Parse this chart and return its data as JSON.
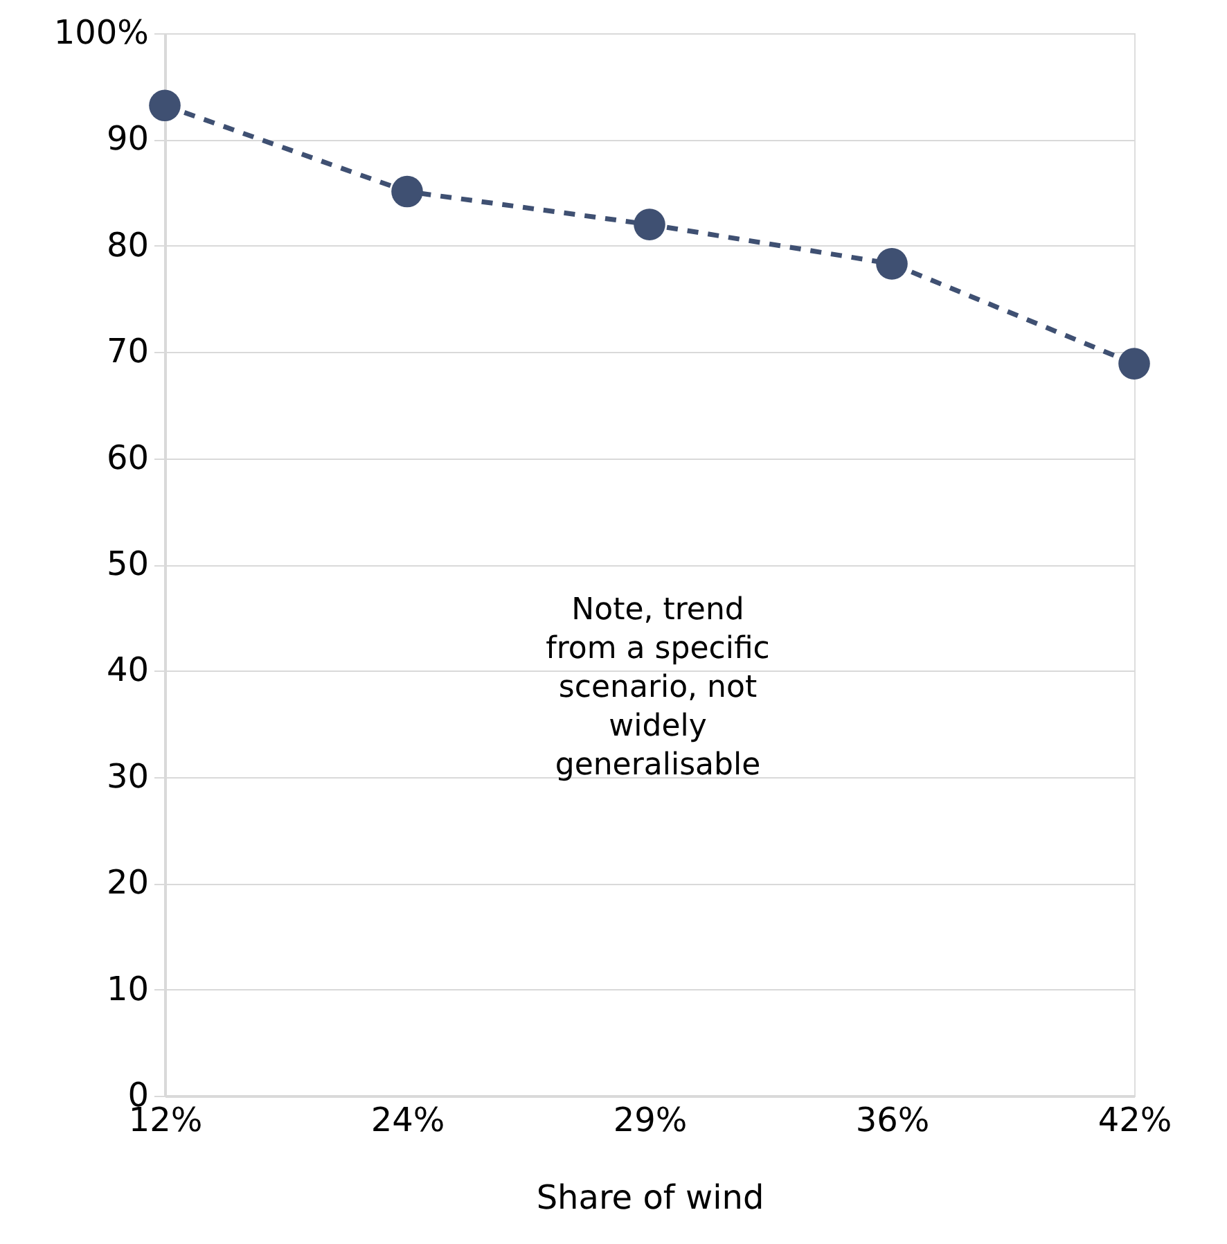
{
  "chart_data": {
    "type": "line",
    "xlabel": "Share of wind",
    "categories": [
      "12%",
      "24%",
      "29%",
      "36%",
      "42%"
    ],
    "series": [
      {
        "color": "#3f5072",
        "values": [
          93.2,
          85.1,
          82.0,
          78.3,
          68.9
        ]
      }
    ],
    "ylim": [
      0,
      100
    ],
    "yticks": [
      0,
      10,
      20,
      30,
      40,
      50,
      60,
      70,
      80,
      90,
      {
        "value": 100,
        "label": "100%"
      }
    ],
    "grid": "y",
    "marker": "circle",
    "line_style": "dashed",
    "annotations": [
      "Note, trend from a specific scenario, not widely generalisable"
    ]
  }
}
